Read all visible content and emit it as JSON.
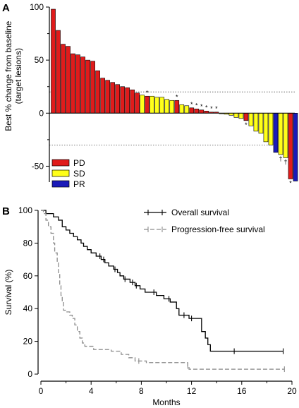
{
  "chart_data": [
    {
      "panel": "A",
      "type": "bar",
      "ylabel": "Best % change from baseline\n(target lesions)",
      "ylim": [
        -65,
        100
      ],
      "yticks": [
        100,
        50,
        0,
        -50
      ],
      "reference_lines": [
        20,
        -30
      ],
      "legend": [
        {
          "label": "PD",
          "color": "#e01b1b"
        },
        {
          "label": "SD",
          "color": "#ffff1a"
        },
        {
          "label": "PR",
          "color": "#1a1ab8"
        }
      ],
      "bars": [
        {
          "value": 98,
          "response": "PD"
        },
        {
          "value": 78,
          "response": "PD"
        },
        {
          "value": 65,
          "response": "PD"
        },
        {
          "value": 63,
          "response": "PD"
        },
        {
          "value": 56,
          "response": "PD"
        },
        {
          "value": 55,
          "response": "PD"
        },
        {
          "value": 53,
          "response": "PD"
        },
        {
          "value": 50,
          "response": "PD"
        },
        {
          "value": 49,
          "response": "PD"
        },
        {
          "value": 40,
          "response": "PD"
        },
        {
          "value": 33,
          "response": "PD"
        },
        {
          "value": 31,
          "response": "PD"
        },
        {
          "value": 29,
          "response": "PD"
        },
        {
          "value": 27,
          "response": "PD"
        },
        {
          "value": 25,
          "response": "PD"
        },
        {
          "value": 24,
          "response": "PD"
        },
        {
          "value": 22,
          "response": "PD"
        },
        {
          "value": 19,
          "response": "PD"
        },
        {
          "value": 17,
          "response": "SD"
        },
        {
          "value": 16,
          "response": "PD",
          "marker": "*"
        },
        {
          "value": 16,
          "response": "SD"
        },
        {
          "value": 15,
          "response": "SD"
        },
        {
          "value": 15,
          "response": "SD"
        },
        {
          "value": 13,
          "response": "SD"
        },
        {
          "value": 12,
          "response": "SD"
        },
        {
          "value": 12,
          "response": "PD",
          "marker": "*"
        },
        {
          "value": 8,
          "response": "SD"
        },
        {
          "value": 7,
          "response": "SD"
        },
        {
          "value": 5,
          "response": "PD",
          "marker": "*"
        },
        {
          "value": 4,
          "response": "PD",
          "marker": "*"
        },
        {
          "value": 3,
          "response": "PD",
          "marker": "*"
        },
        {
          "value": 2,
          "response": "PD",
          "marker": "*"
        },
        {
          "value": 1,
          "response": "PD",
          "marker": "*"
        },
        {
          "value": 1,
          "response": "PD",
          "marker": "*"
        },
        {
          "value": 0,
          "response": "SD"
        },
        {
          "value": -1,
          "response": "SD"
        },
        {
          "value": -2,
          "response": "SD"
        },
        {
          "value": -4,
          "response": "SD"
        },
        {
          "value": -5,
          "response": "SD"
        },
        {
          "value": -7,
          "response": "PD",
          "marker": "*"
        },
        {
          "value": -12,
          "response": "SD"
        },
        {
          "value": -17,
          "response": "SD"
        },
        {
          "value": -19,
          "response": "SD"
        },
        {
          "value": -27,
          "response": "SD"
        },
        {
          "value": -30,
          "response": "SD"
        },
        {
          "value": -37,
          "response": "PR"
        },
        {
          "value": -39,
          "response": "SD",
          "marker": "†"
        },
        {
          "value": -42,
          "response": "SD",
          "marker": "†"
        },
        {
          "value": -62,
          "response": "PD",
          "marker": "*"
        },
        {
          "value": -64,
          "response": "PR"
        }
      ]
    },
    {
      "panel": "B",
      "type": "line",
      "xlabel": "Months",
      "ylabel": "Survival (%)",
      "xlim": [
        0,
        20
      ],
      "ylim": [
        0,
        100
      ],
      "xticks": [
        0,
        4,
        8,
        12,
        16,
        20
      ],
      "yticks": [
        0,
        20,
        40,
        60,
        80,
        100
      ],
      "series": [
        {
          "name": "Overall survival",
          "color": "#000000",
          "dashed": false,
          "steps": [
            [
              0,
              100
            ],
            [
              0.4,
              98
            ],
            [
              1.0,
              96
            ],
            [
              1.4,
              94
            ],
            [
              1.7,
              90
            ],
            [
              2.0,
              88
            ],
            [
              2.3,
              86
            ],
            [
              2.6,
              84
            ],
            [
              2.9,
              82
            ],
            [
              3.2,
              80
            ],
            [
              3.4,
              78
            ],
            [
              3.7,
              76
            ],
            [
              4.0,
              74
            ],
            [
              4.4,
              72
            ],
            [
              4.8,
              70
            ],
            [
              5.1,
              68
            ],
            [
              5.4,
              66
            ],
            [
              5.8,
              64
            ],
            [
              6.1,
              62
            ],
            [
              6.3,
              60
            ],
            [
              6.6,
              58
            ],
            [
              7.1,
              56
            ],
            [
              7.5,
              54
            ],
            [
              7.9,
              52
            ],
            [
              8.3,
              50
            ],
            [
              9.2,
              48
            ],
            [
              9.8,
              46
            ],
            [
              10.3,
              44
            ],
            [
              10.8,
              40
            ],
            [
              11.0,
              36
            ],
            [
              11.8,
              34
            ],
            [
              12.8,
              26
            ],
            [
              13.1,
              22
            ],
            [
              13.3,
              18
            ],
            [
              13.5,
              14
            ],
            [
              19.3,
              14
            ]
          ],
          "censor_x": [
            4.7,
            5.0,
            5.9,
            6.7,
            7.3,
            7.6,
            9.0,
            10.2,
            11.4,
            12.0,
            15.4,
            19.3
          ]
        },
        {
          "name": "Progression-free survival",
          "color": "#8c8c8c",
          "dashed": true,
          "steps": [
            [
              0,
              100
            ],
            [
              0.2,
              98
            ],
            [
              0.4,
              94
            ],
            [
              0.6,
              90
            ],
            [
              0.8,
              86
            ],
            [
              1.0,
              80
            ],
            [
              1.1,
              74
            ],
            [
              1.3,
              68
            ],
            [
              1.4,
              62
            ],
            [
              1.5,
              54
            ],
            [
              1.6,
              48
            ],
            [
              1.7,
              44
            ],
            [
              1.8,
              39
            ],
            [
              2.0,
              38
            ],
            [
              2.3,
              36
            ],
            [
              2.5,
              34
            ],
            [
              2.7,
              30
            ],
            [
              2.9,
              26
            ],
            [
              3.1,
              22
            ],
            [
              3.3,
              19
            ],
            [
              3.5,
              17
            ],
            [
              4.2,
              15
            ],
            [
              5.6,
              14
            ],
            [
              6.4,
              12
            ],
            [
              7.0,
              10
            ],
            [
              7.5,
              8
            ],
            [
              8.4,
              7
            ],
            [
              11.7,
              5
            ],
            [
              11.8,
              3
            ],
            [
              19.4,
              3
            ]
          ],
          "censor_x": [
            7.8,
            11.7,
            19.4
          ]
        }
      ]
    }
  ]
}
